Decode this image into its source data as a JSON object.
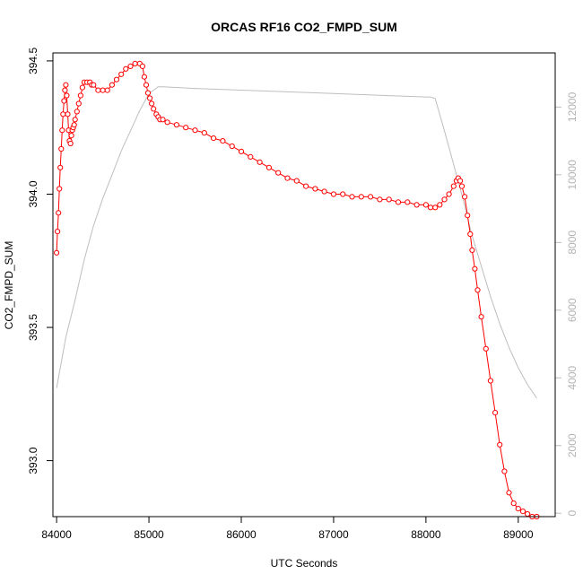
{
  "chart_data": {
    "type": "scatter",
    "title": "ORCAS RF16 CO2_FMPD_SUM",
    "xlabel": "UTC Seconds",
    "ylabel": "CO2_FMPD_SUM",
    "xlim": [
      83960,
      89400
    ],
    "ylim": [
      392.79,
      394.53
    ],
    "y2lim": [
      -100,
      13600
    ],
    "x_ticks": [
      84000,
      85000,
      86000,
      87000,
      88000,
      89000
    ],
    "y_ticks": [
      393.0,
      393.5,
      394.0,
      394.5
    ],
    "y_tick_labels": [
      "393.0",
      "393.5",
      "394.0",
      "394.5"
    ],
    "y2_ticks": [
      0,
      2000,
      4000,
      6000,
      8000,
      10000,
      12000
    ],
    "colors": {
      "primary": "#ff0000",
      "secondary": "#bebebe"
    },
    "series": [
      {
        "role": "primary",
        "marker": "open-circle",
        "x": [
          84000,
          84010,
          84020,
          84030,
          84040,
          84050,
          84060,
          84070,
          84080,
          84090,
          84100,
          84110,
          84120,
          84130,
          84140,
          84150,
          84160,
          84170,
          84180,
          84190,
          84200,
          84220,
          84240,
          84260,
          84280,
          84300,
          84330,
          84360,
          84380,
          84400,
          84450,
          84500,
          84550,
          84600,
          84650,
          84700,
          84750,
          84800,
          84850,
          84900,
          84930,
          84950,
          84970,
          84990,
          85010,
          85030,
          85050,
          85080,
          85100,
          85120,
          85150,
          85200,
          85300,
          85400,
          85500,
          85600,
          85700,
          85800,
          85900,
          86000,
          86100,
          86200,
          86300,
          86400,
          86500,
          86600,
          86700,
          86800,
          86900,
          87000,
          87100,
          87200,
          87300,
          87400,
          87500,
          87600,
          87700,
          87800,
          87900,
          88000,
          88050,
          88100,
          88150,
          88200,
          88250,
          88300,
          88330,
          88350,
          88370,
          88390,
          88420,
          88450,
          88480,
          88500,
          88530,
          88560,
          88600,
          88650,
          88700,
          88750,
          88800,
          88850,
          88900,
          88950,
          89000,
          89050,
          89100,
          89150,
          89200
        ],
        "y": [
          393.78,
          393.86,
          393.93,
          394.02,
          394.1,
          394.17,
          394.24,
          394.3,
          394.35,
          394.39,
          394.41,
          394.37,
          394.3,
          394.24,
          394.2,
          394.19,
          394.22,
          394.24,
          394.25,
          394.26,
          394.28,
          394.31,
          394.34,
          394.37,
          394.4,
          394.42,
          394.42,
          394.42,
          394.41,
          394.41,
          394.39,
          394.39,
          394.39,
          394.41,
          394.43,
          394.45,
          394.47,
          394.48,
          394.49,
          394.49,
          394.48,
          394.44,
          394.41,
          394.38,
          394.36,
          394.34,
          394.32,
          394.3,
          394.29,
          394.28,
          394.28,
          394.27,
          394.26,
          394.25,
          394.24,
          394.23,
          394.21,
          394.2,
          394.18,
          394.16,
          394.14,
          394.12,
          394.1,
          394.08,
          394.06,
          394.05,
          394.03,
          394.02,
          394.01,
          394.0,
          394.0,
          393.99,
          393.99,
          393.99,
          393.98,
          393.98,
          393.97,
          393.97,
          393.96,
          393.96,
          393.95,
          393.95,
          393.96,
          393.98,
          394.0,
          394.03,
          394.05,
          394.06,
          394.05,
          394.03,
          393.99,
          393.92,
          393.85,
          393.79,
          393.72,
          393.64,
          393.54,
          393.42,
          393.3,
          393.18,
          393.06,
          392.96,
          392.88,
          392.84,
          392.82,
          392.81,
          392.8,
          392.79,
          392.79
        ]
      },
      {
        "role": "secondary",
        "x": [
          84000,
          84100,
          84200,
          84300,
          84400,
          84500,
          84600,
          84700,
          84800,
          84900,
          85000,
          85100,
          85150,
          85500,
          86000,
          86500,
          87000,
          87500,
          88000,
          88050,
          88100,
          88200,
          88300,
          88400,
          88500,
          88600,
          88700,
          88800,
          88900,
          89000,
          89100,
          89200
        ],
        "y": [
          3700,
          5200,
          6300,
          7500,
          8500,
          9300,
          10000,
          10700,
          11300,
          11900,
          12400,
          12600,
          12600,
          12550,
          12500,
          12450,
          12400,
          12350,
          12300,
          12300,
          12250,
          11300,
          10300,
          9300,
          8200,
          7300,
          6400,
          5600,
          4900,
          4300,
          3800,
          3400
        ]
      }
    ]
  }
}
